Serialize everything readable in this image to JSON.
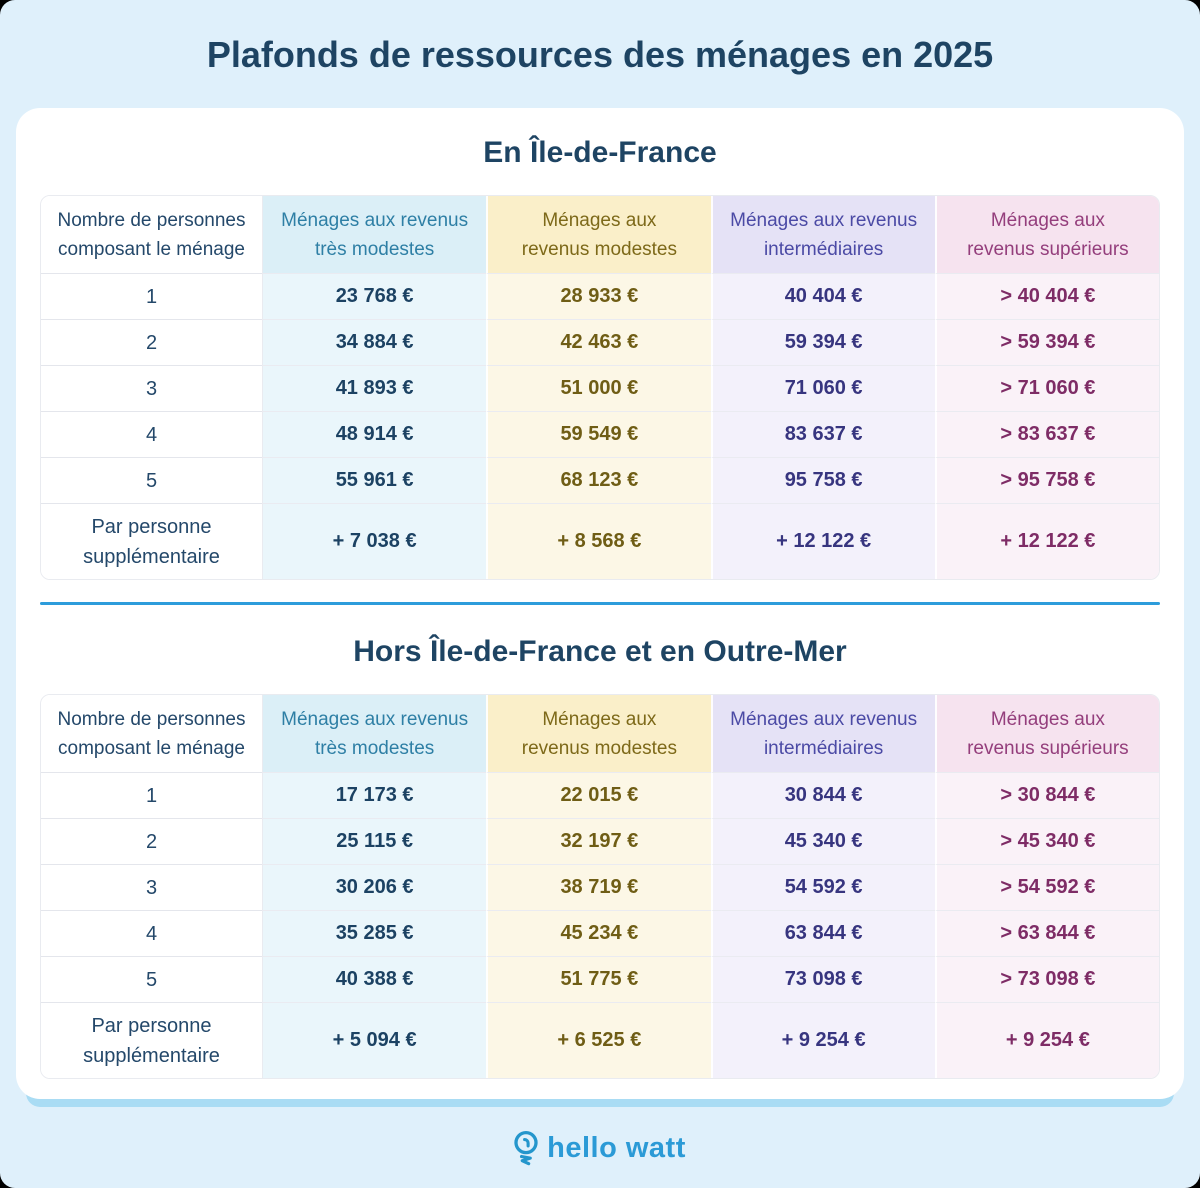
{
  "title": "Plafonds de ressources des ménages en 2025",
  "palette": {
    "page_bg": "#DFF0FB",
    "card_bg": "#FFFFFF",
    "navy": "#1E4463",
    "divider_blue": "#2D9CDB",
    "card_shadow": "#A9DCF4",
    "brand_blue": "#2B9AD6",
    "columns": [
      {
        "id": "household-size",
        "header_bg": "#FFFFFF",
        "header_text": "#24486A",
        "body_bg": "#FFFFFF",
        "body_text": "#24486A"
      },
      {
        "id": "revenus-tres-modestes",
        "header_bg": "#DBEFF7",
        "header_text": "#2E7FA5",
        "body_bg": "#EAF6FB",
        "body_text": "#1C4263"
      },
      {
        "id": "revenus-modestes",
        "header_bg": "#FAEFC9",
        "header_text": "#7D6919",
        "body_bg": "#FCF7E6",
        "body_text": "#6F5D15"
      },
      {
        "id": "revenus-intermediaires",
        "header_bg": "#E5E2F6",
        "header_text": "#4B4AA5",
        "body_bg": "#F3F1FB",
        "body_text": "#37357F"
      },
      {
        "id": "revenus-superieurs",
        "header_bg": "#F6E3EF",
        "header_text": "#943E7C",
        "body_bg": "#FAF2F8",
        "body_text": "#7E2C66"
      }
    ]
  },
  "chart_data": [
    {
      "type": "table",
      "title": "En Île-de-France",
      "columns": [
        "Nombre de personnes\ncomposant le ménage",
        "Ménages aux revenus\ntrès modestes",
        "Ménages aux\nrevenus modestes",
        "Ménages aux revenus\nintermédiaires",
        "Ménages aux\nrevenus supérieurs"
      ],
      "rows": [
        [
          "1",
          "23 768 €",
          "28 933 €",
          "40 404 €",
          "> 40 404 €"
        ],
        [
          "2",
          "34 884 €",
          "42 463 €",
          "59 394 €",
          "> 59 394 €"
        ],
        [
          "3",
          "41 893 €",
          "51 000 €",
          "71 060 €",
          "> 71 060 €"
        ],
        [
          "4",
          "48 914 €",
          "59 549 €",
          "83 637 €",
          "> 83 637 €"
        ],
        [
          "5",
          "55 961 €",
          "68 123 €",
          "95 758 €",
          "> 95 758 €"
        ],
        [
          "Par personne\nsupplémentaire",
          "+ 7 038 €",
          "+ 8 568 €",
          "+ 12 122 €",
          "+ 12 122 €"
        ]
      ]
    },
    {
      "type": "table",
      "title": "Hors Île-de-France et en Outre-Mer",
      "columns": [
        "Nombre de personnes\ncomposant le ménage",
        "Ménages aux revenus\ntrès modestes",
        "Ménages aux\nrevenus modestes",
        "Ménages aux revenus\nintermédiaires",
        "Ménages aux\nrevenus supérieurs"
      ],
      "rows": [
        [
          "1",
          "17 173 €",
          "22 015 €",
          "30 844 €",
          "> 30 844 €"
        ],
        [
          "2",
          "25 115 €",
          "32 197 €",
          "45 340 €",
          "> 45 340 €"
        ],
        [
          "3",
          "30 206 €",
          "38 719 €",
          "54 592 €",
          "> 54 592 €"
        ],
        [
          "4",
          "35 285 €",
          "45 234 €",
          "63 844 €",
          "> 63 844 €"
        ],
        [
          "5",
          "40 388 €",
          "51 775 €",
          "73 098 €",
          "> 73 098 €"
        ],
        [
          "Par personne\nsupplémentaire",
          "+ 5 094 €",
          "+ 6 525 €",
          "+ 9 254 €",
          "+ 9 254 €"
        ]
      ]
    }
  ],
  "footer": {
    "brand": "hello watt",
    "icon": "lightbulb-icon"
  }
}
